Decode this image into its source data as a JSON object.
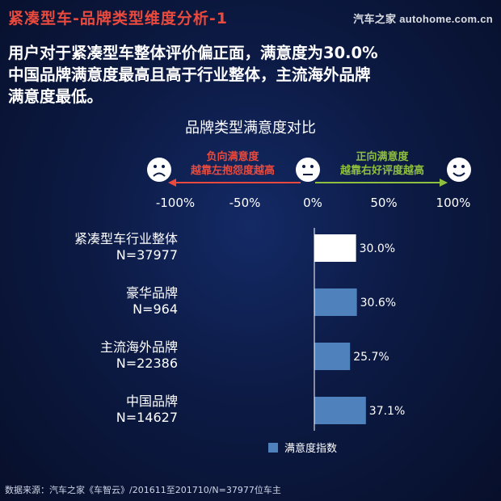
{
  "header": {
    "section_title": "紧凑型车-品牌类型维度分析-1",
    "brand_logo": "汽车之家 autohome.com.cn"
  },
  "headline": {
    "lines": [
      "用户对于紧凑型车整体评价偏正面，满意度为30.0%",
      "中国品牌满意度最高且高于行业整体，主流海外品牌",
      "满意度最低。"
    ]
  },
  "colors": {
    "negative": "#e94a3d",
    "positive": "#8fbf3f",
    "bar_highlight": "#ffffff",
    "bar_default": "#4f81bd"
  },
  "scale": {
    "negative_line1": "负向满意度",
    "negative_line2": "越靠左抱怨度越高",
    "positive_line1": "正向满意度",
    "positive_line2": "越靠右好评度越高",
    "icons": [
      "frown-face-icon",
      "neutral-face-icon",
      "smile-face-icon"
    ]
  },
  "chart_data": {
    "type": "bar",
    "orientation": "horizontal",
    "title": "品牌类型满意度对比",
    "xlim": [
      -100,
      100
    ],
    "x_ticks": [
      -100,
      -50,
      0,
      50,
      100
    ],
    "x_tick_labels": [
      "-100%",
      "-50%",
      "0%",
      "50%",
      "100%"
    ],
    "categories": [
      {
        "name": "紧凑型车行业整体",
        "n": "N=37977"
      },
      {
        "name": "豪华品牌",
        "n": "N=964"
      },
      {
        "name": "主流海外品牌",
        "n": "N=22386"
      },
      {
        "name": "中国品牌",
        "n": "N=14627"
      }
    ],
    "series": [
      {
        "name": "满意度指数",
        "values": [
          30.0,
          30.6,
          25.7,
          37.1
        ],
        "labels": [
          "30.0%",
          "30.6%",
          "25.7%",
          "37.1%"
        ],
        "highlight_index": 0
      }
    ],
    "legend": "bottom-center",
    "grid": false
  },
  "footer": {
    "source": "数据来源：汽车之家《车智云》/201611至201710/N=37977位车主"
  }
}
